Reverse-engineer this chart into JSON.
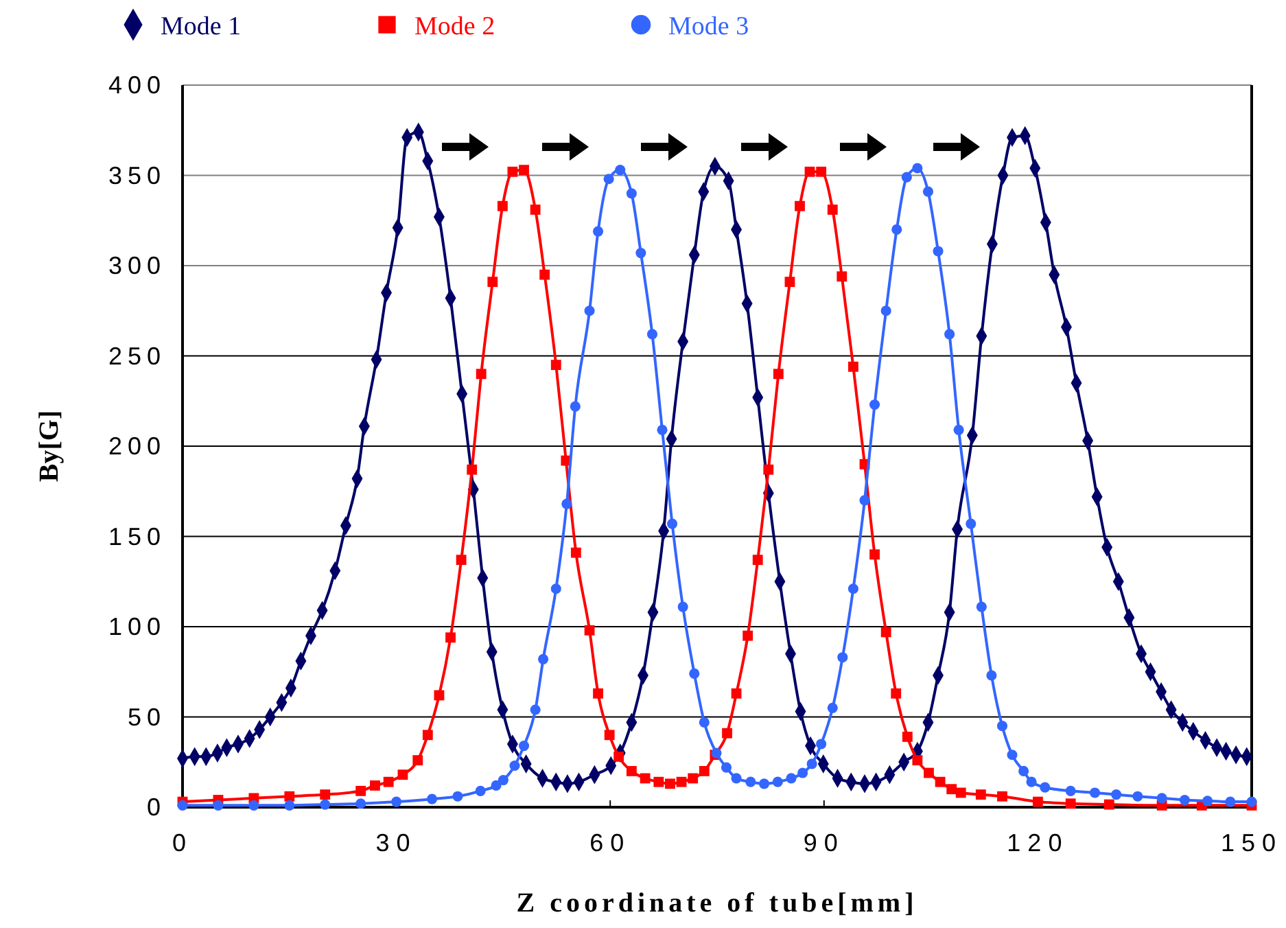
{
  "chart_data": {
    "type": "line",
    "xlabel": "Z coordinate of tube[mm]",
    "ylabel": "By[G]",
    "xlim": [
      0,
      150
    ],
    "ylim": [
      0,
      400
    ],
    "xticks": [
      0,
      30,
      60,
      90,
      120,
      150
    ],
    "yticks": [
      0,
      50,
      100,
      150,
      200,
      250,
      300,
      350,
      400
    ],
    "grid": "y",
    "legend": "top left",
    "line_style": "solid",
    "series": [
      {
        "name": "Mode 1",
        "color": "#000066",
        "marker": "diamond",
        "x": [
          0,
          1.7,
          3.3,
          4.9,
          6.2,
          7.8,
          9.4,
          10.8,
          12.3,
          13.9,
          15.2,
          16.6,
          18,
          19.6,
          21.4,
          22.9,
          24.5,
          25.5,
          27.2,
          28.6,
          30.2,
          31.5,
          33.1,
          34.4,
          36,
          37.6,
          39.2,
          40.8,
          42.1,
          43.4,
          44.9,
          46.3,
          48.2,
          50.5,
          52.4,
          54,
          55.6,
          57.8,
          60.1,
          61.4,
          63,
          64.6,
          66,
          67.5,
          68.6,
          70.2,
          71.8,
          73.1,
          74.7,
          76.6,
          77.7,
          79.2,
          80.7,
          82.2,
          83.8,
          85.3,
          86.7,
          88.1,
          89.9,
          91.9,
          93.8,
          95.7,
          97.3,
          99.2,
          101.2,
          103.1,
          104.6,
          106,
          107.6,
          108.7,
          110.8,
          112.1,
          113.6,
          115.1,
          116.4,
          118.2,
          119.6,
          121.1,
          122.3,
          124,
          125.4,
          127,
          128.3,
          129.7,
          131.3,
          132.8,
          134.5,
          135.8,
          137.3,
          138.7,
          140.3,
          141.8,
          143.5,
          145.1,
          146.4,
          147.8,
          149.3
        ],
        "values": [
          27,
          28,
          28,
          30,
          33,
          35,
          38,
          43,
          50,
          58,
          66,
          81,
          95,
          109,
          131,
          156,
          182,
          211,
          248,
          285,
          321,
          371,
          374,
          358,
          327,
          282,
          229,
          176,
          127,
          86,
          54,
          35,
          24,
          16,
          14,
          13,
          14,
          18,
          23,
          30,
          47,
          73,
          108,
          153,
          204,
          258,
          306,
          341,
          355,
          347,
          320,
          279,
          227,
          174,
          125,
          85,
          53,
          34,
          24,
          16,
          14,
          13,
          14,
          18,
          25,
          31,
          47,
          73,
          108,
          154,
          206,
          261,
          312,
          350,
          371,
          372,
          354,
          324,
          295,
          266,
          235,
          203,
          172,
          144,
          125,
          105,
          85,
          75,
          64,
          54,
          47,
          42,
          37,
          33,
          31,
          29,
          28
        ]
      },
      {
        "name": "Mode 2",
        "color": "#ff0000",
        "marker": "square",
        "x": [
          0,
          5,
          10,
          15,
          20,
          25,
          27,
          28.9,
          30.9,
          33,
          34.4,
          36,
          37.6,
          39.1,
          40.6,
          41.9,
          43.5,
          44.9,
          46.3,
          47.9,
          49.5,
          50.8,
          52.4,
          53.8,
          55.2,
          57.1,
          58.3,
          59.9,
          61.2,
          63,
          64.9,
          66.8,
          68.4,
          70,
          71.6,
          73.2,
          74.7,
          76.4,
          77.7,
          79.3,
          80.7,
          82.2,
          83.6,
          85.2,
          86.6,
          88,
          89.6,
          91.2,
          92.5,
          94.1,
          95.7,
          97.1,
          98.7,
          100.1,
          101.7,
          103.1,
          104.7,
          106.3,
          107.9,
          109.2,
          112,
          115,
          120,
          124.6,
          130,
          137.4,
          143,
          150
        ],
        "values": [
          3,
          4,
          5,
          6,
          7,
          9,
          12,
          14,
          18,
          26,
          40,
          62,
          94,
          137,
          187,
          240,
          291,
          333,
          352,
          353,
          331,
          295,
          245,
          192,
          141,
          98,
          63,
          40,
          28,
          20,
          16,
          14,
          13,
          14,
          16,
          20,
          29,
          41,
          63,
          95,
          137,
          187,
          240,
          291,
          333,
          352,
          352,
          331,
          294,
          244,
          190,
          140,
          97,
          63,
          39,
          26,
          19,
          14,
          10,
          8,
          7,
          6,
          3,
          2,
          1.5,
          1,
          1,
          1
        ]
      },
      {
        "name": "Mode 3",
        "color": "#3366ff",
        "marker": "circle",
        "x": [
          0,
          5,
          10,
          15,
          20,
          25,
          30,
          35,
          38.6,
          41.8,
          44,
          45,
          46.6,
          47.9,
          49.5,
          50.6,
          52.4,
          53.9,
          55.1,
          57.1,
          58.3,
          59.8,
          61.4,
          63,
          64.3,
          65.9,
          67.3,
          68.7,
          70.2,
          71.8,
          73.2,
          74.9,
          76.3,
          77.7,
          79.7,
          81.6,
          83.5,
          85.4,
          87,
          88.3,
          89.6,
          91.2,
          92.6,
          94.1,
          95.7,
          97.1,
          98.7,
          100.2,
          101.6,
          103.1,
          104.6,
          106,
          107.6,
          108.9,
          110.6,
          112.1,
          113.5,
          115,
          116.4,
          118,
          119.1,
          121,
          124.6,
          128,
          131,
          134,
          137.4,
          140.6,
          143.8,
          147,
          150
        ],
        "values": [
          1,
          1,
          1,
          1,
          1.5,
          2,
          3,
          4.5,
          6,
          9,
          12,
          15,
          23,
          34,
          54,
          82,
          121,
          168,
          222,
          275,
          319,
          348,
          353,
          340,
          307,
          262,
          209,
          157,
          111,
          74,
          47,
          30,
          22,
          16,
          14,
          13,
          14,
          16,
          19,
          24,
          35,
          55,
          83,
          121,
          170,
          223,
          275,
          320,
          349,
          354,
          341,
          308,
          262,
          209,
          157,
          111,
          73,
          45,
          29,
          20,
          14,
          11,
          9,
          8,
          7,
          6,
          5,
          4,
          3.5,
          3,
          3
        ]
      }
    ]
  }
}
